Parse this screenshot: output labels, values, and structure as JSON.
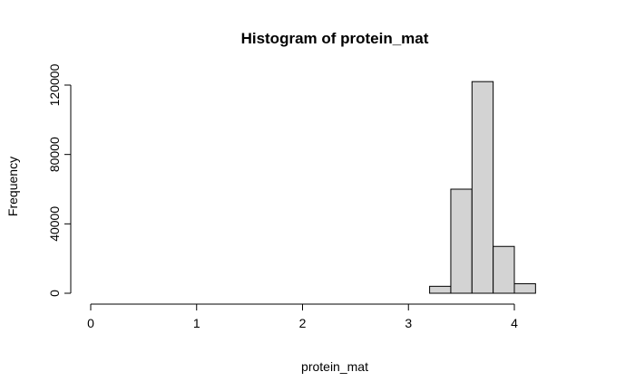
{
  "chart_data": {
    "type": "bar",
    "title": "Histogram of protein_mat",
    "xlabel": "protein_mat",
    "ylabel": "Frequency",
    "x_ticks": [
      0,
      1,
      2,
      3,
      4
    ],
    "y_ticks": [
      0,
      40000,
      80000,
      120000
    ],
    "xlim": [
      0,
      4.6
    ],
    "ylim": [
      0,
      125000
    ],
    "bins": [
      {
        "start": 0.0,
        "end": 0.2,
        "count": 0
      },
      {
        "start": 0.2,
        "end": 0.4,
        "count": 0
      },
      {
        "start": 0.4,
        "end": 0.6,
        "count": 0
      },
      {
        "start": 0.6,
        "end": 0.8,
        "count": 0
      },
      {
        "start": 0.8,
        "end": 1.0,
        "count": 0
      },
      {
        "start": 1.0,
        "end": 1.2,
        "count": 0
      },
      {
        "start": 1.2,
        "end": 1.4,
        "count": 0
      },
      {
        "start": 1.4,
        "end": 1.6,
        "count": 0
      },
      {
        "start": 1.6,
        "end": 1.8,
        "count": 0
      },
      {
        "start": 1.8,
        "end": 2.0,
        "count": 0
      },
      {
        "start": 2.0,
        "end": 2.2,
        "count": 0
      },
      {
        "start": 2.2,
        "end": 2.4,
        "count": 0
      },
      {
        "start": 2.4,
        "end": 2.6,
        "count": 0
      },
      {
        "start": 2.6,
        "end": 2.8,
        "count": 0
      },
      {
        "start": 2.8,
        "end": 3.0,
        "count": 0
      },
      {
        "start": 3.0,
        "end": 3.2,
        "count": 0
      },
      {
        "start": 3.2,
        "end": 3.4,
        "count": 4000
      },
      {
        "start": 3.4,
        "end": 3.6,
        "count": 60000
      },
      {
        "start": 3.6,
        "end": 3.8,
        "count": 122000
      },
      {
        "start": 3.8,
        "end": 4.0,
        "count": 27000
      },
      {
        "start": 4.0,
        "end": 4.2,
        "count": 5500
      }
    ],
    "bar_fill": "#d3d3d3",
    "bar_stroke": "#000000",
    "grid": false,
    "legend": "none"
  }
}
